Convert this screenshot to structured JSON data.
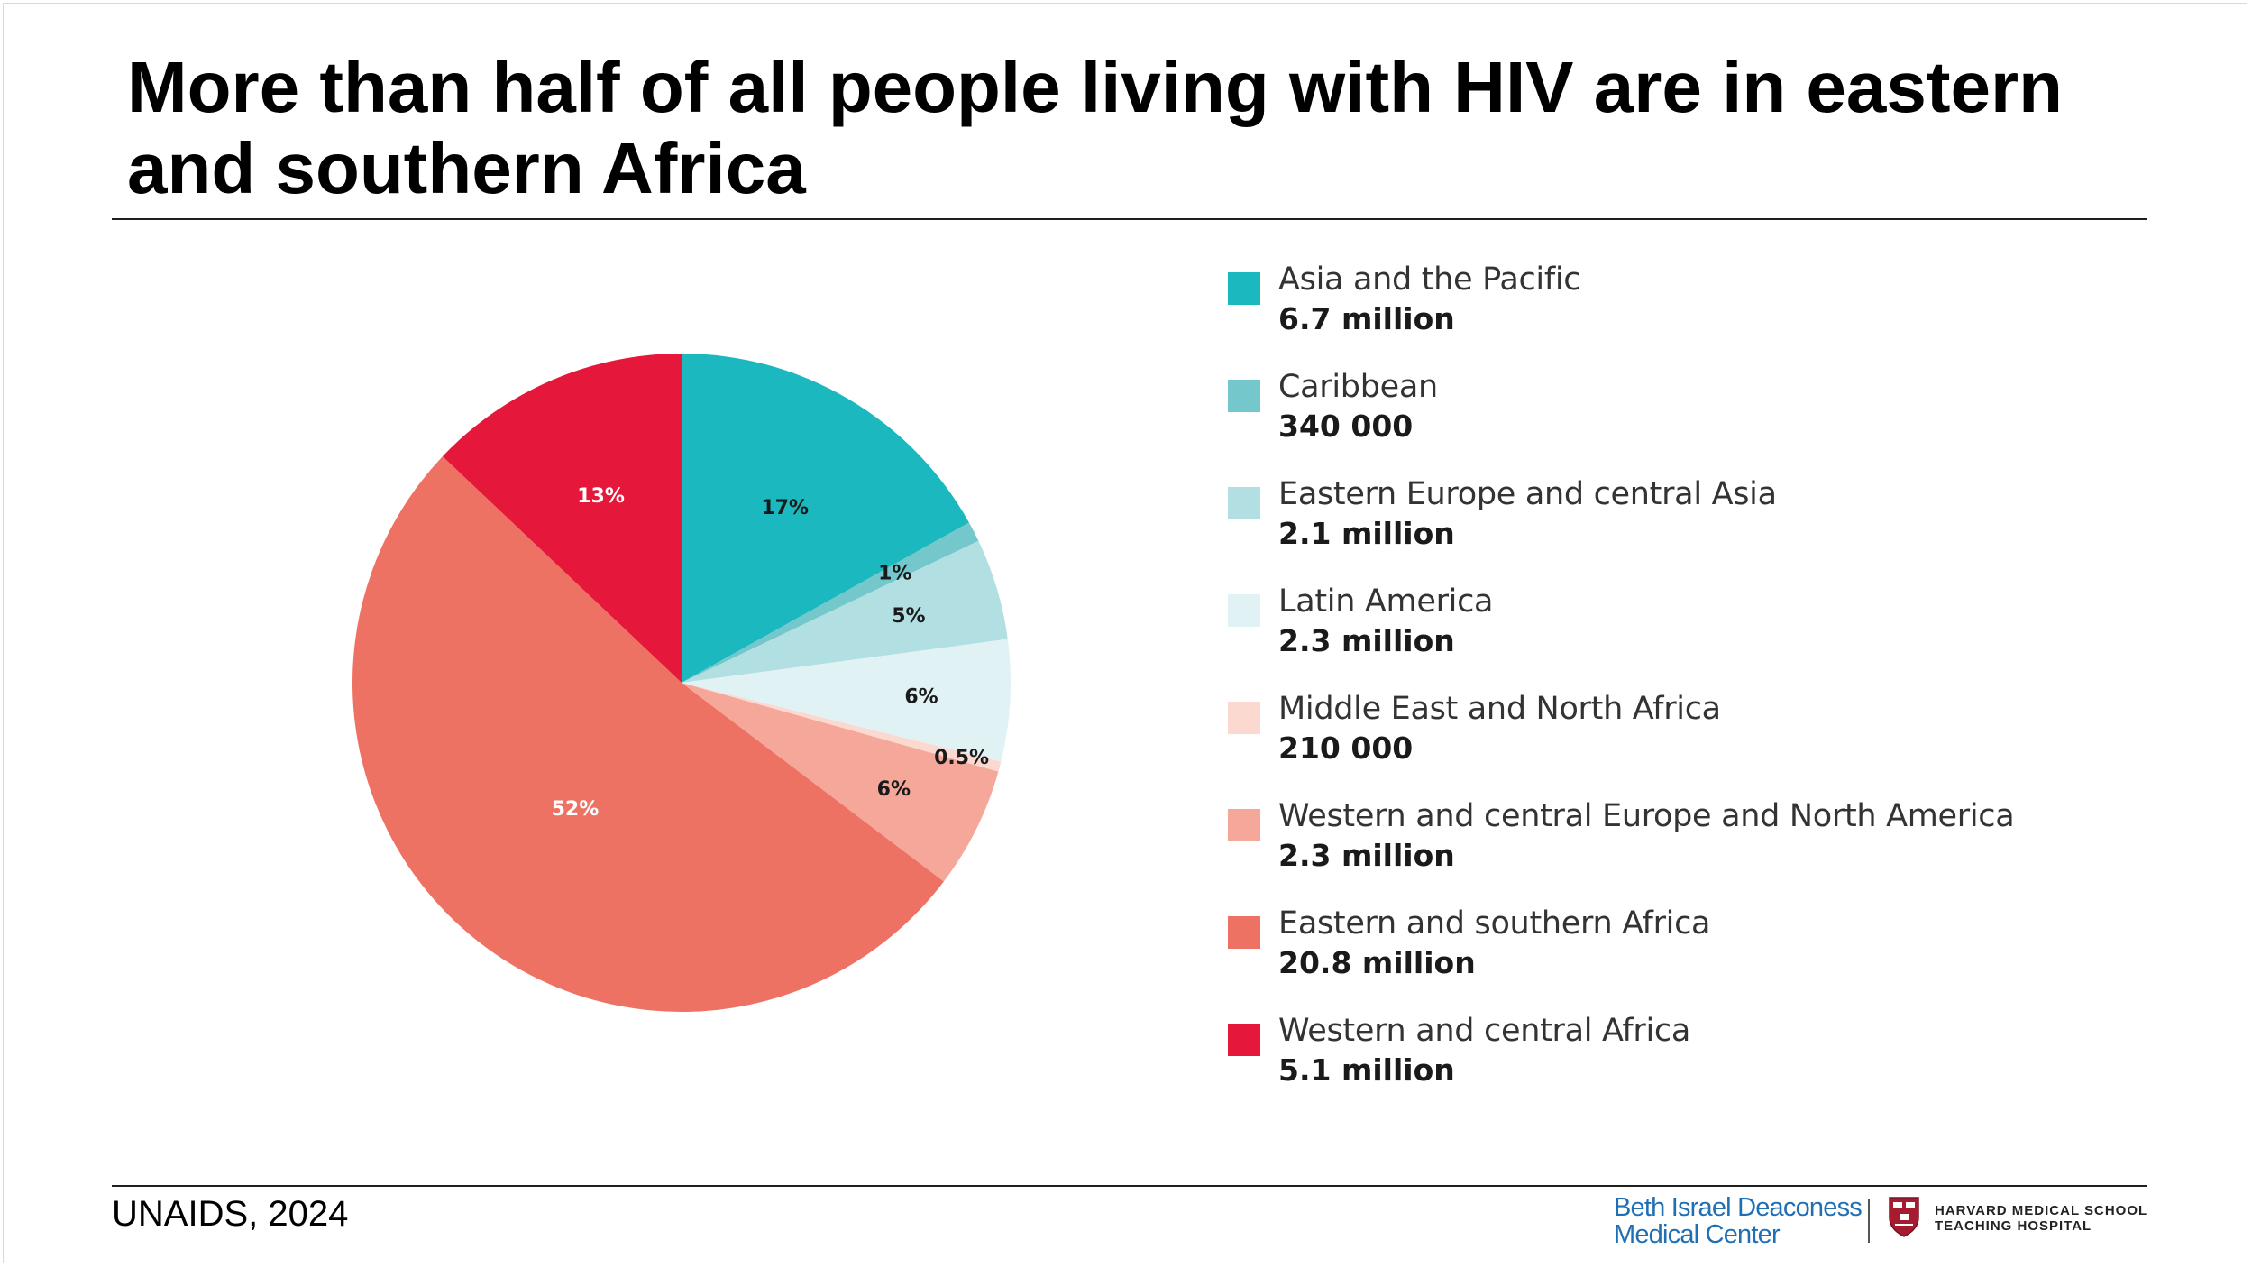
{
  "title": "More than half of all people living with HIV are in eastern and southern Africa",
  "source": "UNAIDS, 2024",
  "logos": {
    "bidmc_line1": "Beth Israel Deaconess",
    "bidmc_line2": "Medical Center",
    "hms_line1": "HARVARD MEDICAL SCHOOL",
    "hms_line2": "TEACHING HOSPITAL",
    "bidmc_color": "#1f6fb5",
    "hms_color": "#a51c30"
  },
  "chart_data": {
    "type": "pie",
    "title": "More than half of all people living with HIV are in eastern and southern Africa",
    "start": "12 o'clock",
    "direction": "clockwise",
    "slices": [
      {
        "name": "Asia and the Pacific",
        "value_text": "6.7 million",
        "percent": 17,
        "percent_label": "17%",
        "color": "#1bb8bf",
        "label_color": "#1a1a1a"
      },
      {
        "name": "Caribbean",
        "value_text": "340 000",
        "percent": 1,
        "percent_label": "1%",
        "color": "#74c8cc",
        "label_color": "#1a1a1a"
      },
      {
        "name": "Eastern Europe and central Asia",
        "value_text": "2.1 million",
        "percent": 5,
        "percent_label": "5%",
        "color": "#b2dfe1",
        "label_color": "#1a1a1a"
      },
      {
        "name": "Latin America",
        "value_text": "2.3 million",
        "percent": 6,
        "percent_label": "6%",
        "color": "#e1f2f4",
        "label_color": "#1a1a1a"
      },
      {
        "name": "Middle East and North Africa",
        "value_text": "210 000",
        "percent": 0.5,
        "percent_label": "0.5%",
        "color": "#fbd9d0",
        "label_color": "#1a1a1a"
      },
      {
        "name": "Western and central Europe and North America",
        "value_text": "2.3 million",
        "percent": 6,
        "percent_label": "6%",
        "color": "#f5a899",
        "label_color": "#1a1a1a"
      },
      {
        "name": "Eastern and southern Africa",
        "value_text": "20.8 million",
        "percent": 52,
        "percent_label": "52%",
        "color": "#ee7264",
        "label_color": "#ffffff"
      },
      {
        "name": "Western and central Africa",
        "value_text": "5.1 million",
        "percent": 13,
        "percent_label": "13%",
        "color": "#e5173a",
        "label_color": "#ffffff"
      }
    ]
  }
}
